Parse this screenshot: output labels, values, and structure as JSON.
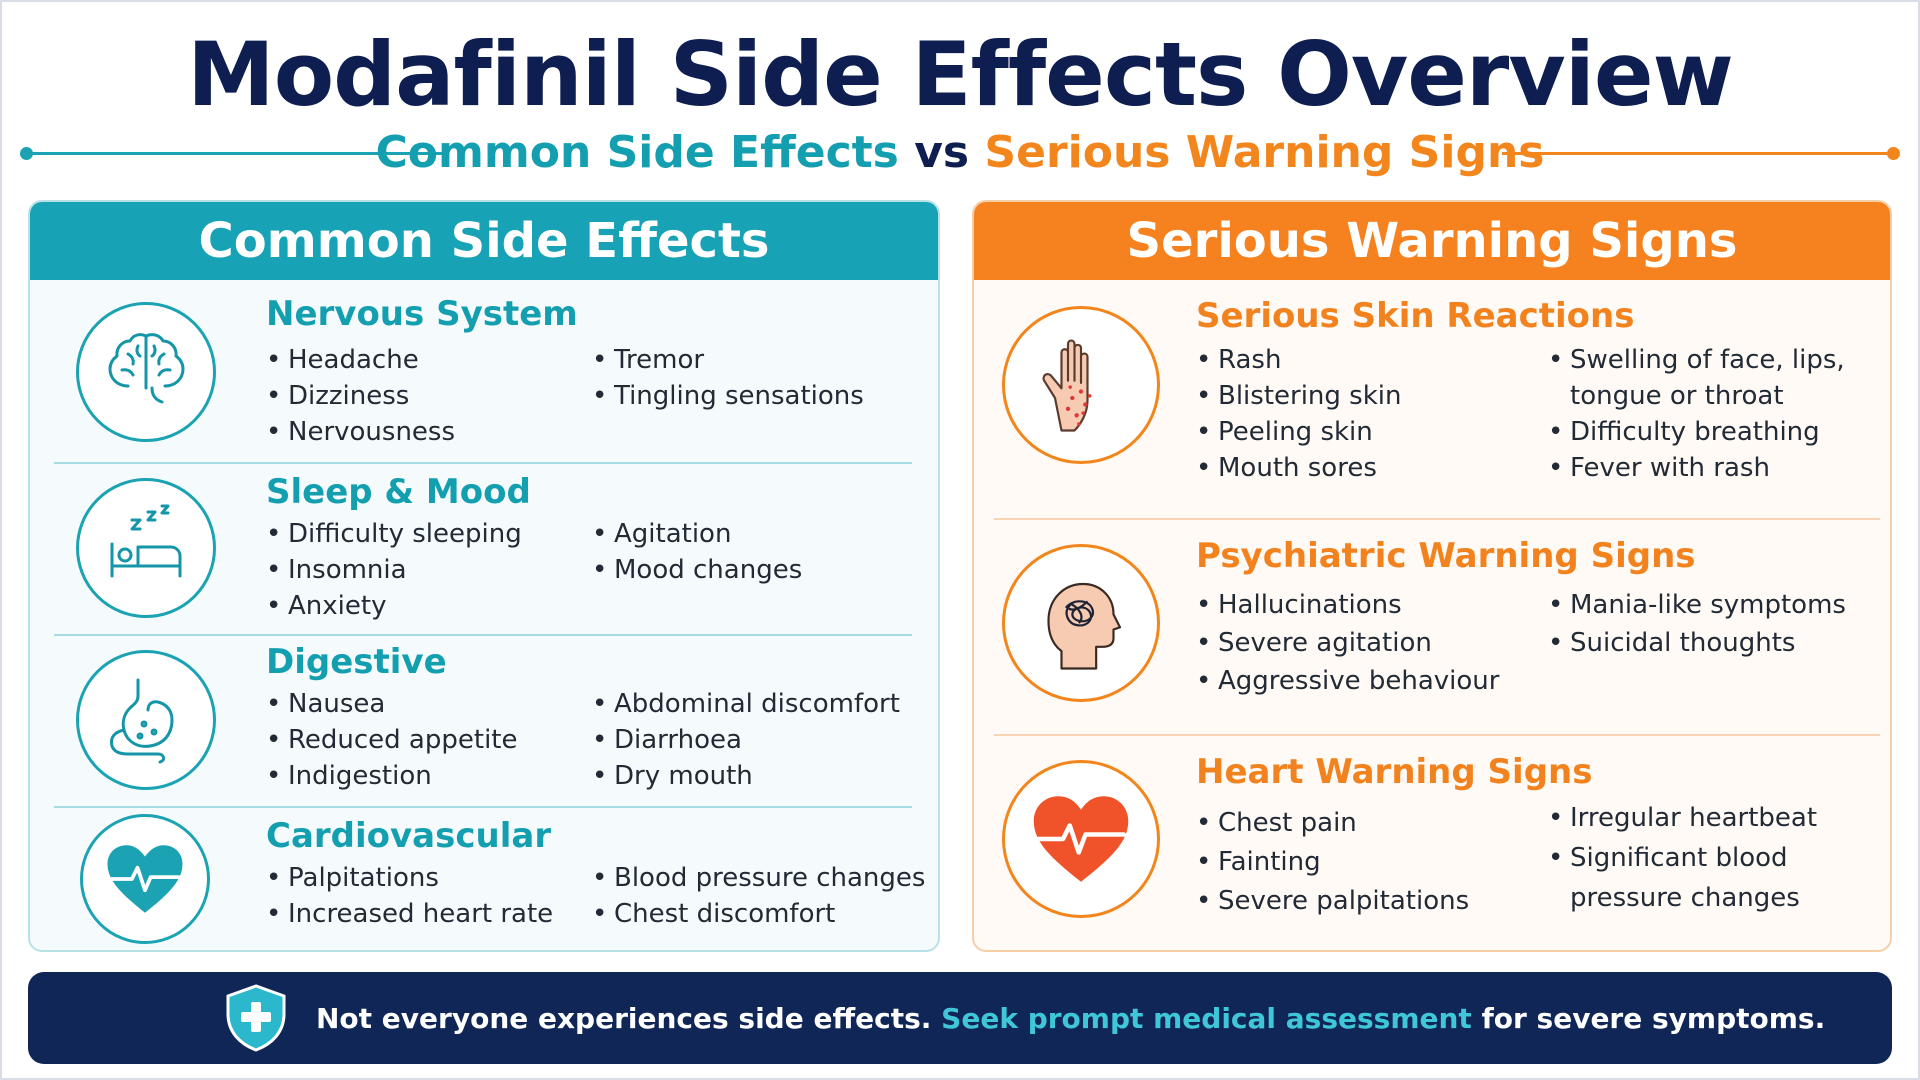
{
  "title": "Modafinil Side Effects Overview",
  "subtitle": {
    "common": "Common Side Effects",
    "vs": "vs",
    "serious": "Serious Warning Signs"
  },
  "colors": {
    "teal": "#17a2b5",
    "orange": "#f5821f",
    "navy": "#0e1e50"
  },
  "common_panel": {
    "heading": "Common Side Effects",
    "sections": [
      {
        "title": "Nervous System",
        "icon": "brain-icon",
        "col1": [
          "Headache",
          "Dizziness",
          "Nervousness"
        ],
        "col2": [
          "Tremor",
          "Tingling sensations"
        ]
      },
      {
        "title": "Sleep & Mood",
        "icon": "sleeping-bed-icon",
        "col1": [
          "Difficulty sleeping",
          "Insomnia",
          "Anxiety"
        ],
        "col2": [
          "Agitation",
          "Mood changes"
        ]
      },
      {
        "title": "Digestive",
        "icon": "stomach-icon",
        "col1": [
          "Nausea",
          "Reduced appetite",
          "Indigestion"
        ],
        "col2": [
          "Abdominal discomfort",
          "Diarrhoea",
          "Dry mouth"
        ]
      },
      {
        "title": "Cardiovascular",
        "icon": "heart-pulse-icon",
        "col1": [
          "Palpitations",
          "Increased heart rate"
        ],
        "col2": [
          "Blood pressure changes",
          "Chest discomfort"
        ]
      }
    ]
  },
  "serious_panel": {
    "heading": "Serious Warning Signs",
    "sections": [
      {
        "title": "Serious Skin Reactions",
        "icon": "rash-hand-icon",
        "col1": [
          "Rash",
          "Blistering skin",
          "Peeling skin",
          "Mouth sores"
        ],
        "col2": [
          "Swelling of face, lips,",
          "tongue or throat",
          "Difficulty breathing",
          "Fever with rash"
        ]
      },
      {
        "title": "Psychiatric Warning Signs",
        "icon": "head-tangle-icon",
        "col1": [
          "Hallucinations",
          "Severe agitation",
          "Aggressive behaviour"
        ],
        "col2": [
          "Mania-like symptoms",
          "Suicidal thoughts"
        ]
      },
      {
        "title": "Heart Warning Signs",
        "icon": "heart-ecg-icon",
        "col1": [
          "Chest pain",
          "Fainting",
          "Severe palpitations"
        ],
        "col2": [
          "Irregular heartbeat",
          "Significant blood",
          "pressure changes"
        ]
      }
    ]
  },
  "footer": {
    "icon": "shield-plus-icon",
    "text_start": "Not everyone experiences side effects.",
    "text_accent": "Seek prompt medical assessment",
    "text_end": "for severe symptoms."
  }
}
